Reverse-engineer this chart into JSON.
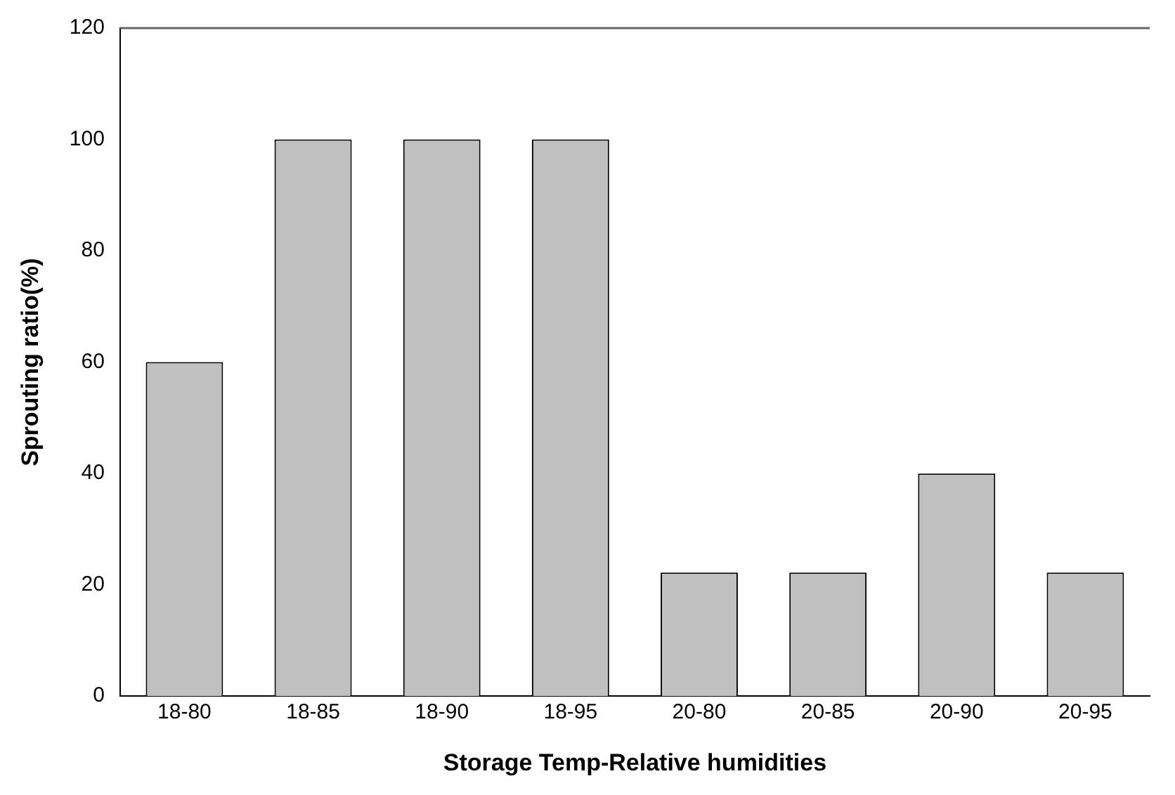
{
  "chart_data": {
    "type": "bar",
    "xlabel": "Storage Temp-Relative humidities",
    "ylabel": "Sprouting ratio(%)",
    "categories": [
      "18-80",
      "18-85",
      "18-90",
      "18-95",
      "20-80",
      "20-85",
      "20-90",
      "20-95"
    ],
    "values": [
      60,
      100,
      100,
      100,
      22.2,
      22.2,
      40,
      22.2
    ],
    "color": "#c0c0c0",
    "ylim": [
      0,
      120
    ],
    "yticks": [
      0,
      20,
      40,
      60,
      80,
      100,
      120
    ],
    "grid": false,
    "legend": false
  }
}
